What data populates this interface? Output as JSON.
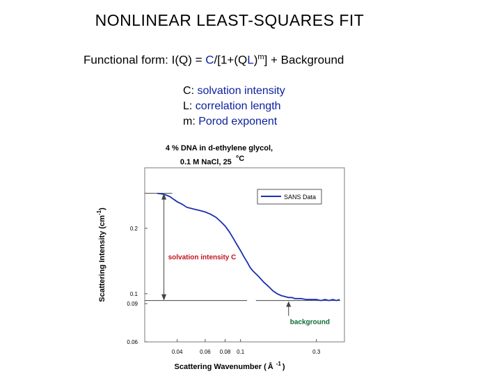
{
  "slide": {
    "title": "NONLINEAR LEAST-SQUARES FIT",
    "formula": {
      "prefix": "Functional form: I(Q) = ",
      "C": "C",
      "slash": "/[1+(Q",
      "L": "L",
      "close": ")",
      "m": "m",
      "suffix": "] + Background"
    },
    "definitions": [
      {
        "symbol": "C: ",
        "meaning": "solvation intensity"
      },
      {
        "symbol": "L: ",
        "meaning": "correlation length"
      },
      {
        "symbol": "m: ",
        "meaning": "Porod exponent"
      }
    ]
  },
  "chart_data": {
    "type": "line",
    "title_line1": "4 % DNA in d-ethylene glycol,",
    "title_line2": "0.1 M NaCl, 25",
    "title_unit": "°C",
    "xlabel": "Scattering Wavenumber (",
    "xlabel_unit": "Å",
    "xlabel_sup": "-1",
    "xlabel_close": ")",
    "ylabel": "Scattering Intensity (cm",
    "ylabel_sup": "-1",
    "ylabel_close": ")",
    "x_scale": "log",
    "y_scale": "log",
    "xlim": [
      0.025,
      0.45
    ],
    "ylim": [
      0.06,
      0.38
    ],
    "x_ticks": [
      0.04,
      0.06,
      0.08,
      0.1,
      0.3
    ],
    "x_tick_labels": [
      "0.04",
      "0.06",
      "0.08",
      "0.1",
      "0.3"
    ],
    "y_ticks": [
      0.06,
      0.09,
      0.1,
      0.2
    ],
    "y_tick_labels": [
      "0.06",
      "0.09",
      "0.1",
      "0.2"
    ],
    "legend": {
      "position": "top-right",
      "label": "SANS Data"
    },
    "series": [
      {
        "name": "SANS Data",
        "color": "#1a2fb0",
        "x": [
          0.03,
          0.032,
          0.034,
          0.036,
          0.038,
          0.04,
          0.043,
          0.046,
          0.05,
          0.055,
          0.06,
          0.065,
          0.07,
          0.075,
          0.08,
          0.085,
          0.09,
          0.095,
          0.1,
          0.105,
          0.11,
          0.115,
          0.12,
          0.13,
          0.14,
          0.15,
          0.16,
          0.17,
          0.18,
          0.19,
          0.2,
          0.21,
          0.22,
          0.24,
          0.26,
          0.28,
          0.3,
          0.32,
          0.34,
          0.36,
          0.38,
          0.4,
          0.42
        ],
        "y": [
          0.29,
          0.288,
          0.285,
          0.28,
          0.272,
          0.265,
          0.258,
          0.25,
          0.246,
          0.242,
          0.238,
          0.232,
          0.225,
          0.215,
          0.205,
          0.193,
          0.18,
          0.168,
          0.158,
          0.148,
          0.14,
          0.132,
          0.127,
          0.12,
          0.113,
          0.108,
          0.103,
          0.1,
          0.098,
          0.097,
          0.096,
          0.096,
          0.095,
          0.095,
          0.094,
          0.094,
          0.094,
          0.093,
          0.094,
          0.093,
          0.094,
          0.093,
          0.094
        ]
      }
    ],
    "annotations": {
      "solvation_label": "solvation intensity C",
      "background_label": "background",
      "annotation_color": "#c0141c",
      "background_color": "#0f6b35",
      "top_level": 0.29,
      "background_level": 0.093,
      "arrow_x": 0.033,
      "background_arrow_x": 0.3
    }
  }
}
